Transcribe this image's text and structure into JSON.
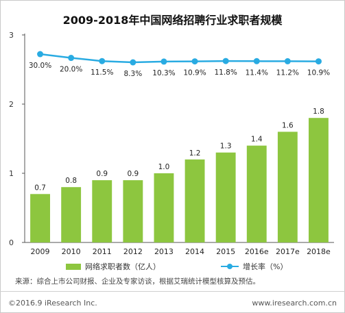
{
  "colors": {
    "bar": "#8dc63f",
    "line": "#29abe2",
    "axis": "#333333"
  },
  "chart_data": {
    "type": "bar",
    "title": "2009-2018年中国网络招聘行业求职者规模",
    "categories": [
      "2009",
      "2010",
      "2011",
      "2012",
      "2013",
      "2014",
      "2015",
      "2016e",
      "2017e",
      "2018e"
    ],
    "series": [
      {
        "name": "网络求职者数（亿人）",
        "type": "bar",
        "values": [
          0.7,
          0.8,
          0.9,
          0.9,
          1.0,
          1.2,
          1.3,
          1.4,
          1.6,
          1.8
        ],
        "labels": [
          "0.7",
          "0.8",
          "0.9",
          "0.9",
          "1.0",
          "1.2",
          "1.3",
          "1.4",
          "1.6",
          "1.8"
        ]
      },
      {
        "name": "增长率（%）",
        "type": "line",
        "values": [
          30.0,
          20.0,
          11.5,
          8.3,
          10.3,
          10.9,
          11.8,
          11.4,
          11.2,
          10.9
        ],
        "labels": [
          "30.0%",
          "20.0%",
          "11.5%",
          "8.3%",
          "10.3%",
          "10.9%",
          "11.8%",
          "11.4%",
          "11.2%",
          "10.9%"
        ]
      }
    ],
    "y_ticks": [
      "0",
      "1",
      "2",
      "3"
    ],
    "ylim": [
      0,
      3
    ],
    "legend_position": "bottom"
  },
  "source_text": "来源：综合上市公司财报、企业及专家访谈，根据艾瑞统计模型核算及预估。",
  "footer": {
    "copyright": "©2016.9 iResearch Inc.",
    "website": "www.iresearch.com.cn"
  }
}
